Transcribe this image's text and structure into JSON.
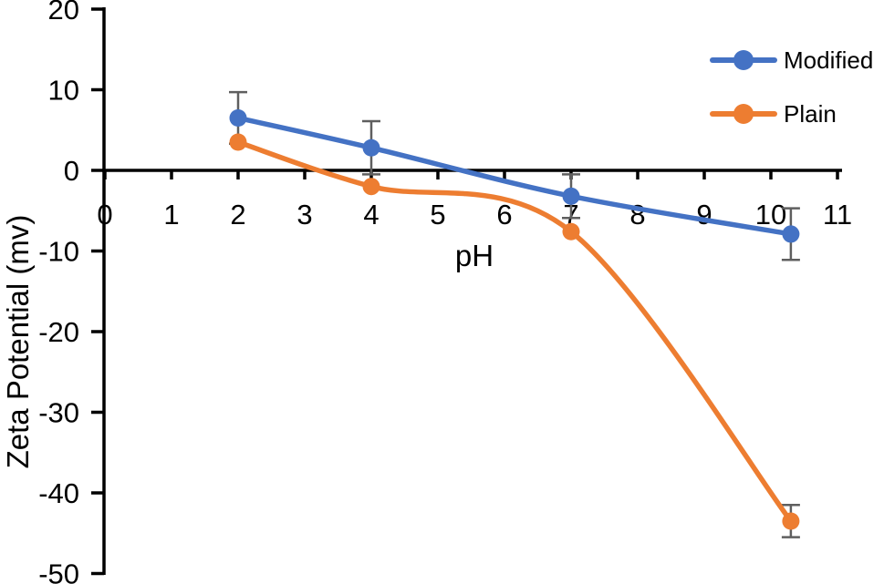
{
  "chart_data": {
    "type": "line",
    "title": "",
    "xlabel": "pH",
    "ylabel": "Zeta Potential (mv)",
    "x": [
      2,
      4,
      7,
      10.3
    ],
    "series": [
      {
        "name": "Modified",
        "color": "#4472C4",
        "values": [
          6.5,
          2.8,
          -3.2,
          -7.9
        ],
        "errors": [
          3.2,
          3.3,
          2.7,
          3.2
        ]
      },
      {
        "name": "Plain",
        "color": "#ED7D31",
        "values": [
          3.5,
          -2.0,
          -7.6,
          -43.5
        ],
        "errors": [
          0,
          0,
          0,
          2.0
        ]
      }
    ],
    "xlim": [
      0,
      11
    ],
    "xticks": [
      0,
      1,
      2,
      3,
      4,
      5,
      6,
      7,
      8,
      9,
      10,
      11
    ],
    "ylim": [
      -50,
      20
    ],
    "yticks": [
      20,
      10,
      0,
      -10,
      -20,
      -30,
      -40,
      -50
    ],
    "grid": false,
    "smooth_lines": true,
    "legend_position": "top-right",
    "axis_color": "#000000",
    "error_bar_color": "#5f5f5f",
    "background_color": "#ffffff"
  }
}
